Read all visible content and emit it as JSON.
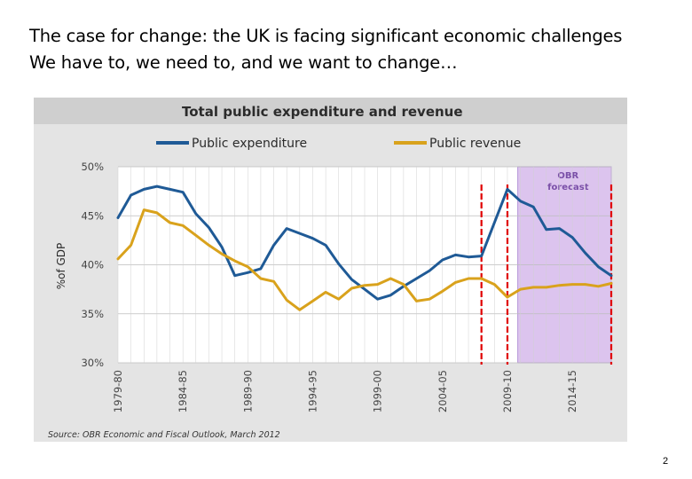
{
  "slide": {
    "title_line1": "The case for change: the UK is facing significant economic challenges",
    "title_line2": "We have to, we need to, and we want to change…",
    "page_number": "2"
  },
  "colors": {
    "expenditure": "#1f5a96",
    "revenue": "#d9a21c",
    "forecast_band": "#dcc4ee",
    "forecast_band_edge": "#a57fd0",
    "marker": "#e00000",
    "chart_bg": "#e4e4e4",
    "plot_bg": "#ffffff",
    "title_band": "#cfcfcf"
  },
  "chart_data": {
    "type": "line",
    "title": "Total public expenditure and revenue",
    "ylabel": "%of GDP",
    "ylim": [
      30,
      50
    ],
    "ytick_labels": [
      "50%",
      "45%",
      "40%",
      "35%",
      "30%"
    ],
    "yticks": [
      50,
      45,
      40,
      35,
      30
    ],
    "xlim": [
      1979,
      2017
    ],
    "xtick_labels": [
      "1979-80",
      "1984-85",
      "1989-90",
      "1994-95",
      "1999-00",
      "2004-05",
      "2009-10",
      "2014-15"
    ],
    "xticks": [
      1979,
      1984,
      1989,
      1994,
      1999,
      2004,
      2009,
      2014
    ],
    "forecast_band": {
      "label": "OBR forecast",
      "from": 2009.8,
      "to": 2017
    },
    "markers": [
      2007,
      2009,
      2017
    ],
    "source": "Source: OBR Economic and Fiscal Outlook, March 2012",
    "series": [
      {
        "name": "Public expenditure",
        "color_key": "expenditure",
        "x": [
          1979,
          1980,
          1981,
          1982,
          1983,
          1984,
          1985,
          1986,
          1987,
          1988,
          1989,
          1990,
          1991,
          1992,
          1993,
          1994,
          1995,
          1996,
          1997,
          1998,
          1999,
          2000,
          2001,
          2002,
          2003,
          2004,
          2005,
          2006,
          2007,
          2008,
          2009,
          2010,
          2011,
          2012,
          2013,
          2014,
          2015,
          2016,
          2017
        ],
        "values": [
          44.8,
          47.1,
          47.7,
          48.0,
          47.7,
          47.4,
          45.2,
          43.8,
          41.8,
          38.9,
          39.2,
          39.6,
          42.0,
          43.7,
          43.2,
          42.7,
          42.0,
          40.1,
          38.5,
          37.5,
          36.5,
          36.9,
          37.8,
          38.6,
          39.4,
          40.5,
          41.0,
          40.8,
          40.9,
          44.3,
          47.7,
          46.5,
          45.9,
          43.6,
          43.7,
          42.8,
          41.2,
          39.8,
          38.9
        ]
      },
      {
        "name": "Public revenue",
        "color_key": "revenue",
        "x": [
          1979,
          1980,
          1981,
          1982,
          1983,
          1984,
          1985,
          1986,
          1987,
          1988,
          1989,
          1990,
          1991,
          1992,
          1993,
          1994,
          1995,
          1996,
          1997,
          1998,
          1999,
          2000,
          2001,
          2002,
          2003,
          2004,
          2005,
          2006,
          2007,
          2008,
          2009,
          2010,
          2011,
          2012,
          2013,
          2014,
          2015,
          2016,
          2017
        ],
        "values": [
          40.6,
          42.0,
          45.6,
          45.3,
          44.3,
          44.0,
          43.0,
          42.0,
          41.1,
          40.4,
          39.8,
          38.6,
          38.3,
          36.4,
          35.4,
          36.3,
          37.2,
          36.5,
          37.6,
          37.9,
          38.0,
          38.6,
          38.0,
          36.3,
          36.5,
          37.3,
          38.2,
          38.6,
          38.6,
          38.0,
          36.7,
          37.5,
          37.7,
          37.7,
          37.9,
          38.0,
          38.0,
          37.8,
          38.1
        ]
      }
    ]
  }
}
